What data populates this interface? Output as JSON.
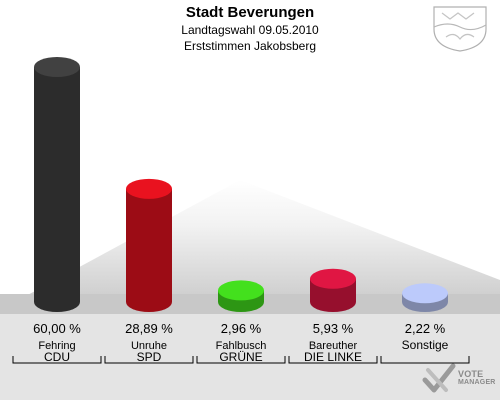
{
  "header": {
    "title": "Stadt Beverungen",
    "subtitle1": "Landtagswahl 09.05.2010",
    "subtitle2": "Erststimmen Jakobsberg"
  },
  "logo": {
    "line1": "VOTE",
    "line2": "MANAGER"
  },
  "chart_data": {
    "type": "bar",
    "categories": [
      "CDU",
      "SPD",
      "GRÜNE",
      "DIE LINKE",
      "Sonstige"
    ],
    "candidates": [
      "Fehring",
      "Unruhe",
      "Fahlbusch",
      "Bareuther",
      ""
    ],
    "values": [
      60.0,
      28.89,
      2.96,
      5.93,
      2.22
    ],
    "value_labels": [
      "60,00 %",
      "28,89 %",
      "2,96 %",
      "5,93 %",
      "2,22 %"
    ],
    "colors": [
      "#3a3a3a",
      "#d0101c",
      "#3cc81a",
      "#c8143c",
      "#a8b4e0"
    ],
    "title": "Stadt Beverungen",
    "xlabel": "",
    "ylabel": "",
    "ylim": [
      0,
      60
    ],
    "grid": false,
    "legend": "none"
  }
}
